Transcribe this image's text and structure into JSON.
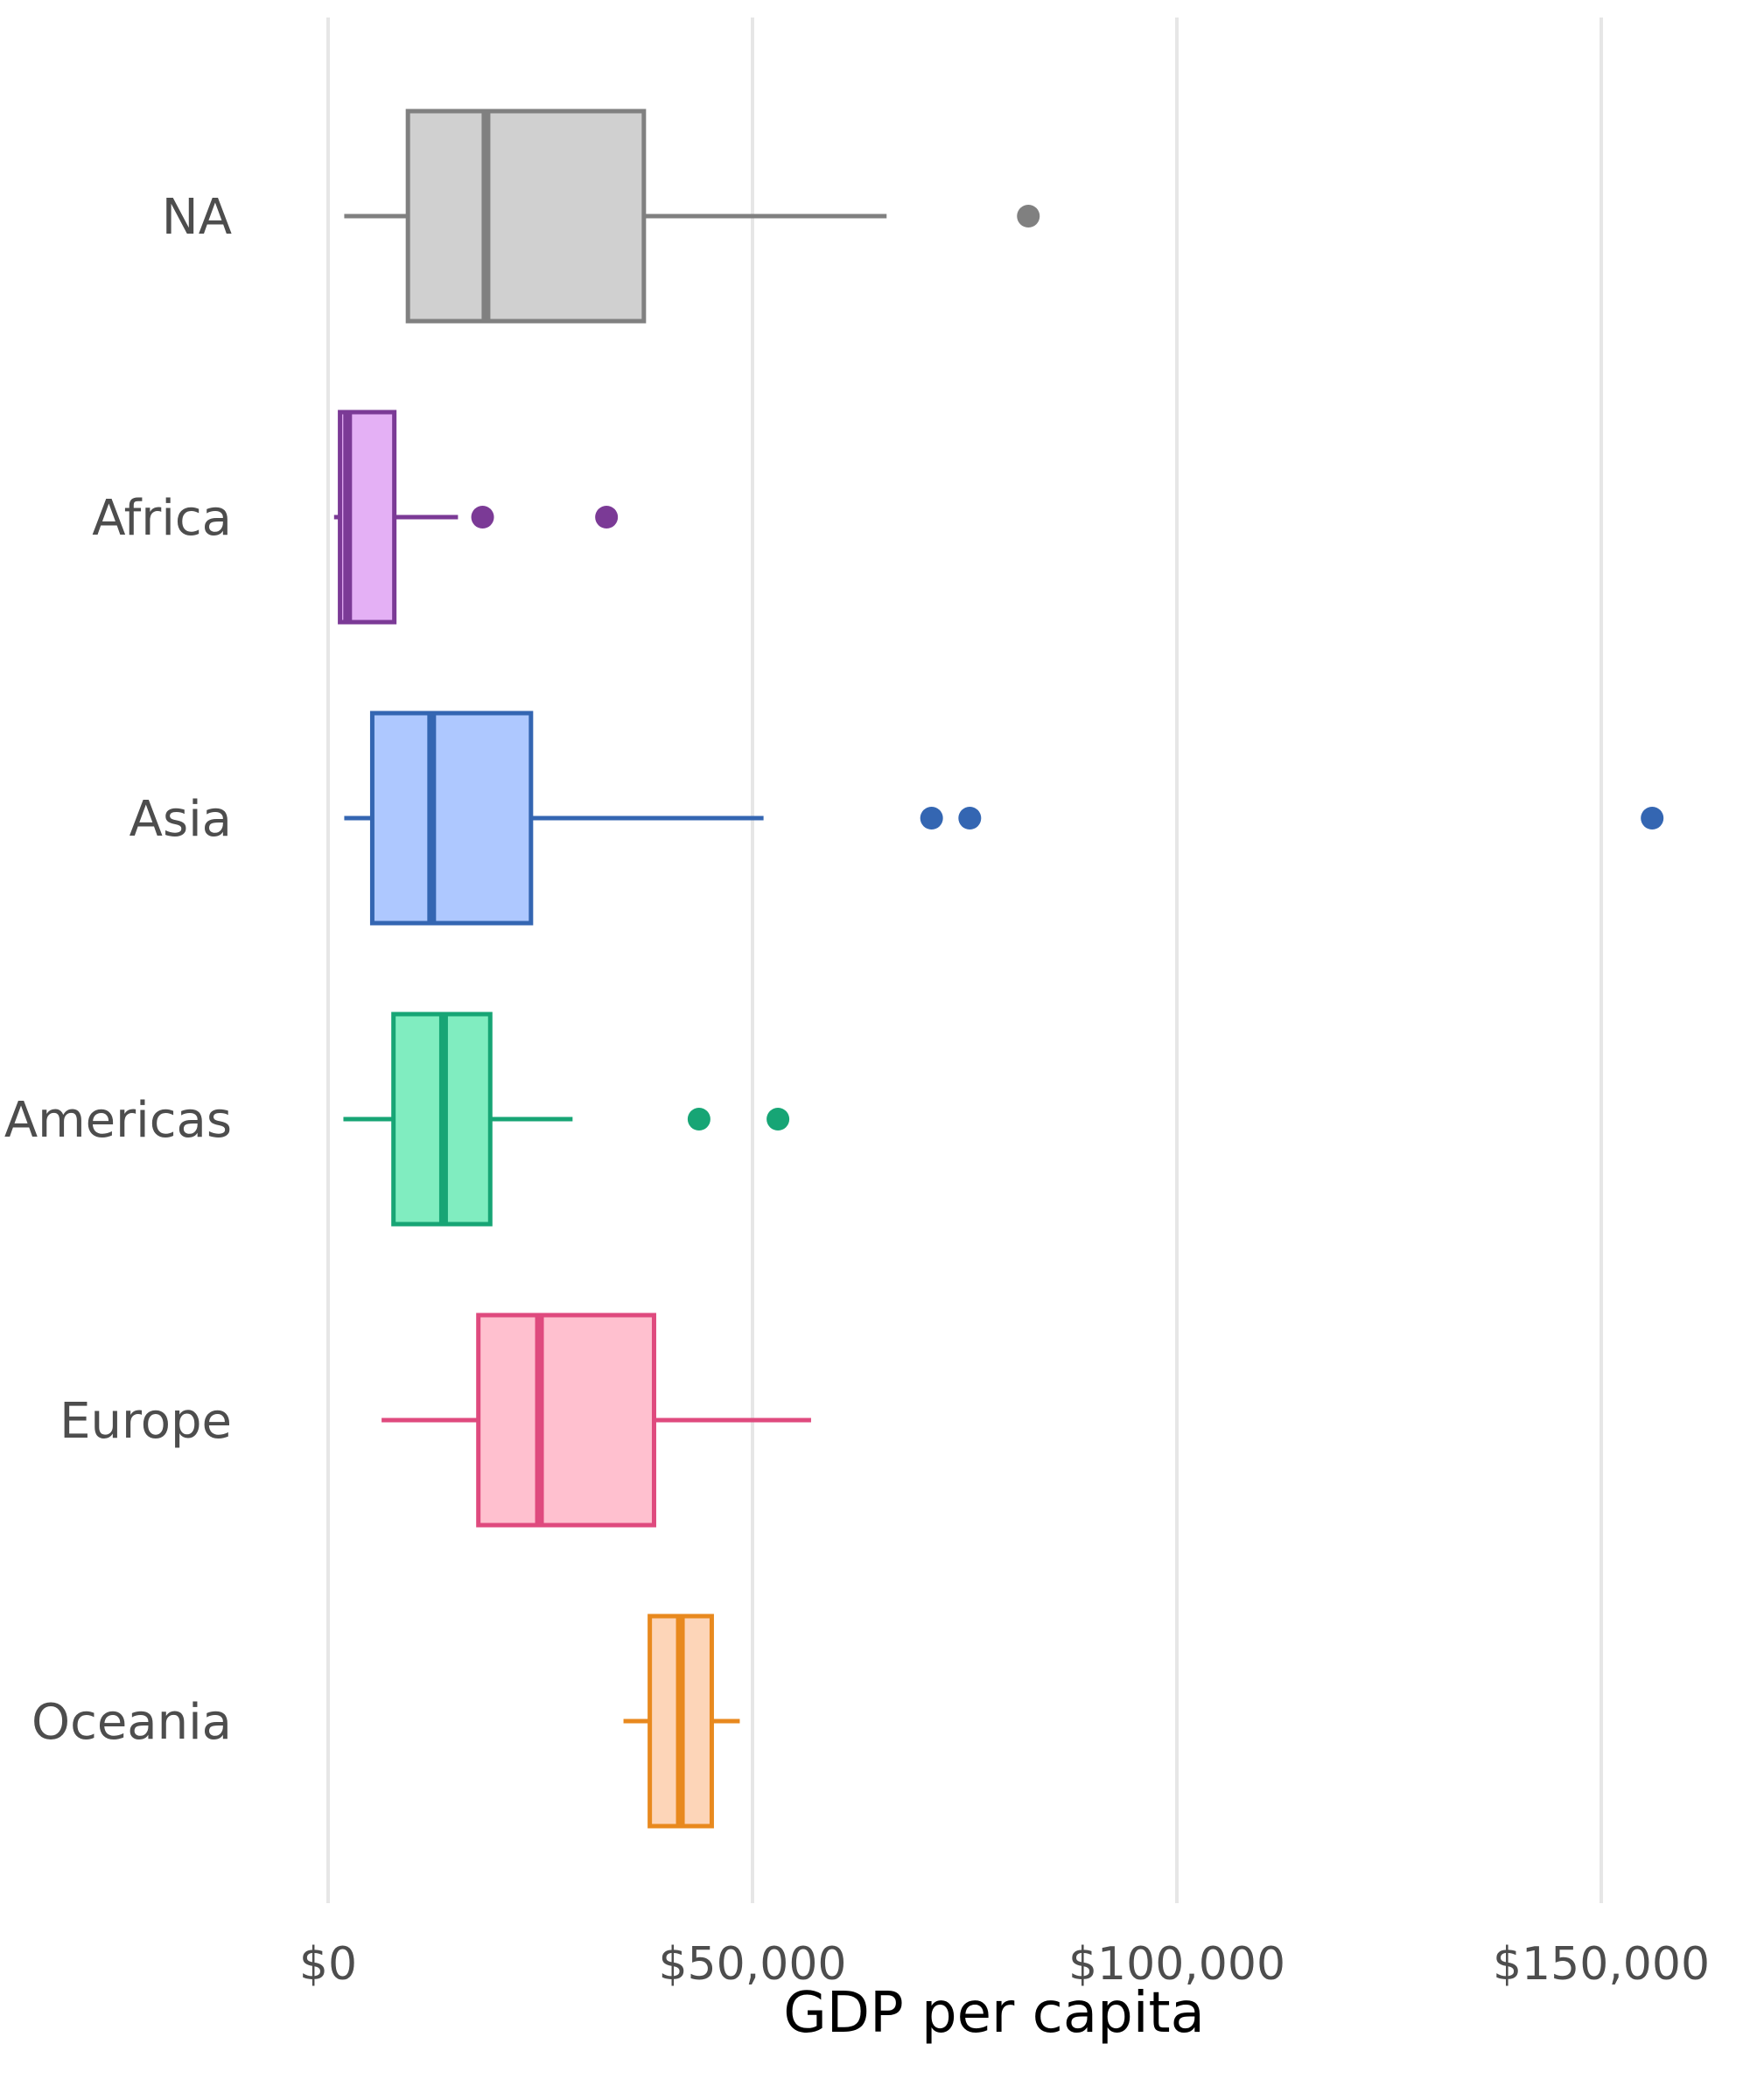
{
  "chart_data": {
    "type": "boxplot",
    "orientation": "horizontal",
    "xlabel": "GDP per capita",
    "ylabel": "",
    "xlim": [
      -3500,
      163000
    ],
    "x_ticks": [
      0,
      50000,
      100000,
      150000
    ],
    "x_tick_labels": [
      "$0",
      "$50,000",
      "$100,000",
      "$150,000"
    ],
    "grid": "vertical major gridlines",
    "legend": "none",
    "categories": [
      "NA",
      "Africa",
      "Asia",
      "Americas",
      "Europe",
      "Oceania"
    ],
    "series": [
      {
        "category": "NA",
        "whisker_low": 1900,
        "q1": 9400,
        "median": 18600,
        "q3": 37200,
        "whisker_high": 65800,
        "outliers": [
          82500
        ],
        "stroke": "#808080",
        "fill": "#d0d0d0"
      },
      {
        "category": "Africa",
        "whisker_low": 700,
        "q1": 1400,
        "median": 2300,
        "q3": 7800,
        "whisker_high": 15300,
        "outliers": [
          18200,
          32800
        ],
        "stroke": "#7b3a96",
        "fill": "#e4b0f5"
      },
      {
        "category": "Asia",
        "whisker_low": 1900,
        "q1": 5200,
        "median": 12200,
        "q3": 23900,
        "whisker_high": 51300,
        "outliers": [
          71100,
          75600,
          156000
        ],
        "stroke": "#3466b2",
        "fill": "#aec8ff"
      },
      {
        "category": "Americas",
        "whisker_low": 1800,
        "q1": 7700,
        "median": 13600,
        "q3": 19100,
        "whisker_high": 28800,
        "outliers": [
          43700,
          53000
        ],
        "stroke": "#17a575",
        "fill": "#80edc0"
      },
      {
        "category": "Europe",
        "whisker_low": 6300,
        "q1": 17700,
        "median": 24900,
        "q3": 38400,
        "whisker_high": 56900,
        "outliers": [],
        "stroke": "#df4a7e",
        "fill": "#ffc0cf"
      },
      {
        "category": "Oceania",
        "whisker_low": 34800,
        "q1": 37900,
        "median": 41500,
        "q3": 45200,
        "whisker_high": 48500,
        "outliers": [],
        "stroke": "#e8891e",
        "fill": "#fdd5b8"
      }
    ]
  }
}
